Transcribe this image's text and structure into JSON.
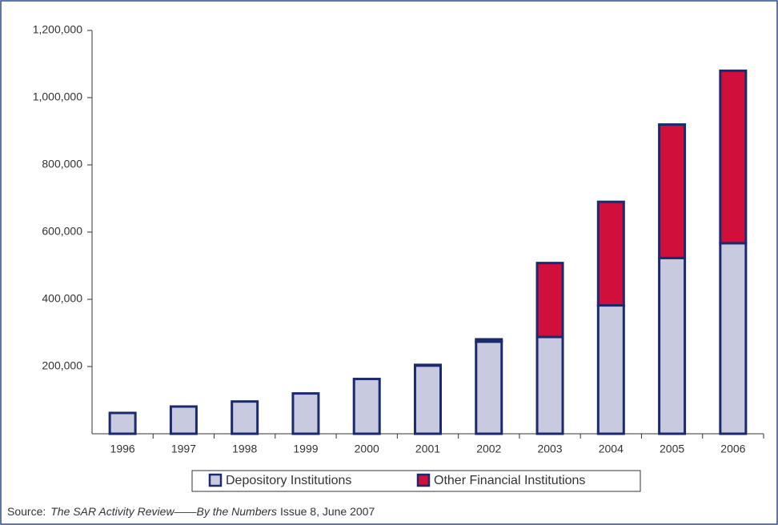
{
  "chart_data": {
    "type": "stacked_bar",
    "categories": [
      "1996",
      "1997",
      "1998",
      "1999",
      "2000",
      "2001",
      "2002",
      "2003",
      "2004",
      "2005",
      "2006"
    ],
    "series": [
      {
        "name": "Depository Institutions",
        "color": "#c8cbe0",
        "values": [
          62000,
          81000,
          96000,
          120000,
          163000,
          203000,
          274000,
          288000,
          382000,
          523000,
          567000
        ]
      },
      {
        "name": "Other Financial Institutions",
        "color": "#d0103a",
        "values": [
          0,
          0,
          0,
          0,
          0,
          2000,
          7000,
          220000,
          308000,
          397000,
          513000
        ]
      }
    ],
    "ylim": [
      0,
      1200000
    ],
    "yticks": [
      {
        "value": 200000,
        "label": "200,000"
      },
      {
        "value": 400000,
        "label": "400,000"
      },
      {
        "value": 600000,
        "label": "600,000"
      },
      {
        "value": 800000,
        "label": "800,000"
      },
      {
        "value": 1000000,
        "label": "1,000,000"
      },
      {
        "value": 1200000,
        "label": "1,200,000"
      }
    ],
    "legend": "bottom",
    "source": {
      "prefix": "Source:",
      "title": "The SAR Activity Review——By the Numbers",
      "suffix": "Issue 8, June 2007"
    }
  }
}
